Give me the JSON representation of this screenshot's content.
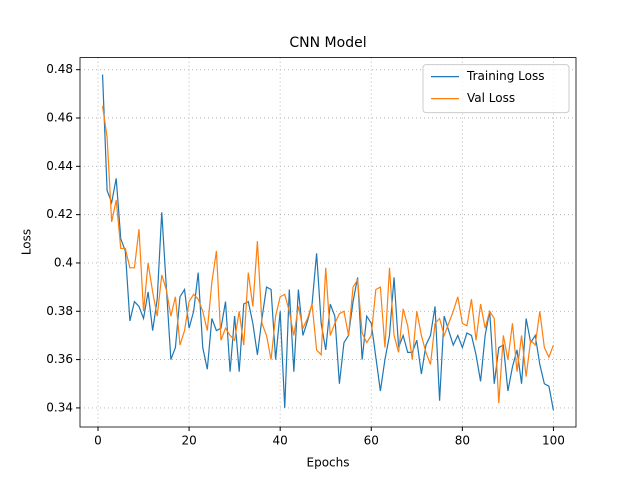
{
  "chart_data": {
    "type": "line",
    "title": "CNN Model",
    "xlabel": "Epochs",
    "ylabel": "Loss",
    "x": [
      1,
      2,
      3,
      4,
      5,
      6,
      7,
      8,
      9,
      10,
      11,
      12,
      13,
      14,
      15,
      16,
      17,
      18,
      19,
      20,
      21,
      22,
      23,
      24,
      25,
      26,
      27,
      28,
      29,
      30,
      31,
      32,
      33,
      34,
      35,
      36,
      37,
      38,
      39,
      40,
      41,
      42,
      43,
      44,
      45,
      46,
      47,
      48,
      49,
      50,
      51,
      52,
      53,
      54,
      55,
      56,
      57,
      58,
      59,
      60,
      61,
      62,
      63,
      64,
      65,
      66,
      67,
      68,
      69,
      70,
      71,
      72,
      73,
      74,
      75,
      76,
      77,
      78,
      79,
      80,
      81,
      82,
      83,
      84,
      85,
      86,
      87,
      88,
      89,
      90,
      91,
      92,
      93,
      94,
      95,
      96,
      97,
      98,
      99,
      100
    ],
    "series": [
      {
        "name": "Training Loss",
        "color": "#1f77b4",
        "values": [
          0.478,
          0.43,
          0.425,
          0.435,
          0.41,
          0.405,
          0.376,
          0.384,
          0.382,
          0.377,
          0.388,
          0.372,
          0.385,
          0.421,
          0.39,
          0.36,
          0.365,
          0.386,
          0.389,
          0.373,
          0.38,
          0.396,
          0.365,
          0.356,
          0.377,
          0.372,
          0.373,
          0.384,
          0.355,
          0.378,
          0.355,
          0.383,
          0.384,
          0.375,
          0.362,
          0.377,
          0.39,
          0.389,
          0.36,
          0.38,
          0.34,
          0.389,
          0.355,
          0.389,
          0.37,
          0.376,
          0.383,
          0.404,
          0.375,
          0.364,
          0.383,
          0.378,
          0.35,
          0.367,
          0.37,
          0.384,
          0.394,
          0.36,
          0.378,
          0.375,
          0.361,
          0.347,
          0.36,
          0.37,
          0.394,
          0.365,
          0.37,
          0.363,
          0.363,
          0.368,
          0.354,
          0.366,
          0.37,
          0.382,
          0.343,
          0.378,
          0.372,
          0.366,
          0.37,
          0.365,
          0.371,
          0.37,
          0.362,
          0.351,
          0.37,
          0.38,
          0.35,
          0.365,
          0.366,
          0.347,
          0.357,
          0.364,
          0.35,
          0.377,
          0.367,
          0.37,
          0.358,
          0.35,
          0.349,
          0.339
        ]
      },
      {
        "name": "Val Loss",
        "color": "#ff7f0e",
        "values": [
          0.465,
          0.452,
          0.417,
          0.426,
          0.406,
          0.406,
          0.398,
          0.398,
          0.414,
          0.38,
          0.4,
          0.388,
          0.378,
          0.395,
          0.389,
          0.378,
          0.386,
          0.366,
          0.372,
          0.384,
          0.387,
          0.385,
          0.38,
          0.372,
          0.392,
          0.405,
          0.368,
          0.373,
          0.37,
          0.368,
          0.38,
          0.366,
          0.396,
          0.382,
          0.409,
          0.375,
          0.37,
          0.36,
          0.378,
          0.386,
          0.387,
          0.38,
          0.37,
          0.382,
          0.373,
          0.377,
          0.383,
          0.364,
          0.362,
          0.398,
          0.37,
          0.375,
          0.379,
          0.38,
          0.37,
          0.39,
          0.393,
          0.371,
          0.367,
          0.37,
          0.389,
          0.39,
          0.365,
          0.398,
          0.37,
          0.363,
          0.381,
          0.374,
          0.36,
          0.38,
          0.37,
          0.363,
          0.358,
          0.375,
          0.377,
          0.37,
          0.375,
          0.38,
          0.386,
          0.375,
          0.374,
          0.385,
          0.368,
          0.383,
          0.373,
          0.38,
          0.377,
          0.342,
          0.37,
          0.36,
          0.375,
          0.355,
          0.37,
          0.353,
          0.368,
          0.366,
          0.38,
          0.365,
          0.361,
          0.366
        ]
      }
    ],
    "xlim": [
      -3.95,
      104.95
    ],
    "ylim": [
      0.3321,
      0.485
    ],
    "xticks": [
      0,
      20,
      40,
      60,
      80,
      100
    ],
    "yticks": [
      0.34,
      0.36,
      0.38,
      0.4,
      0.42,
      0.44,
      0.46,
      0.48
    ],
    "grid": true,
    "legend": "upper right"
  }
}
